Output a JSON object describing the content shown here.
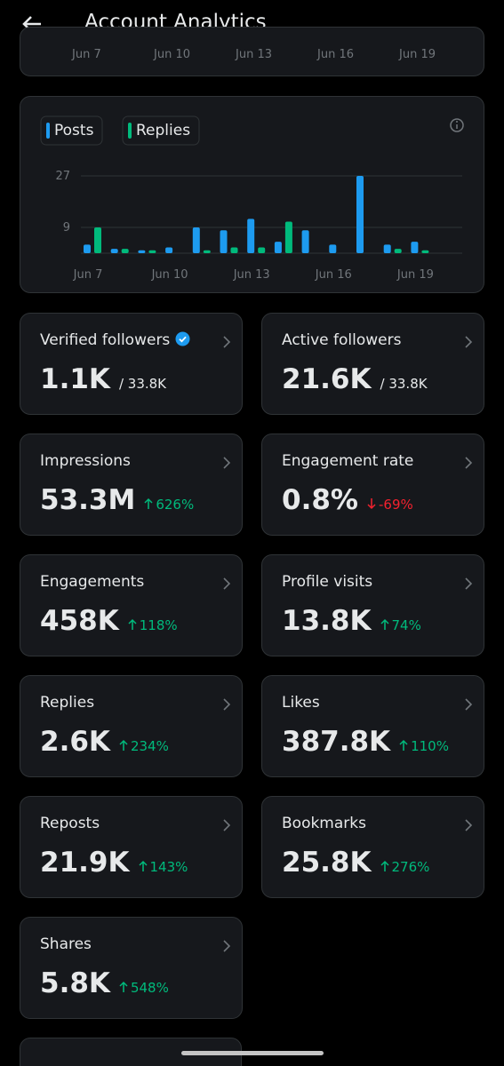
{
  "header": {
    "title": "Account Analytics"
  },
  "previous_chart_labels": [
    "Jun 7",
    "Jun 10",
    "Jun 13",
    "Jun 16",
    "Jun 19"
  ],
  "chart_data": {
    "type": "bar",
    "categories": [
      "Jun 7",
      null,
      null,
      "Jun 10",
      null,
      null,
      "Jun 13",
      null,
      null,
      "Jun 16",
      null,
      null,
      "Jun 19"
    ],
    "series": [
      {
        "name": "Posts",
        "color": "#1d9bf0",
        "values": [
          3,
          1.5,
          1,
          2,
          9,
          8,
          12,
          4,
          8,
          3,
          27,
          3,
          4
        ]
      },
      {
        "name": "Replies",
        "color": "#00ba7c",
        "values": [
          9,
          1.5,
          1,
          0,
          1,
          2,
          2,
          11,
          0,
          0,
          0,
          1.5,
          1
        ]
      }
    ],
    "ylim": [
      0,
      27
    ],
    "yticks": [
      9,
      27
    ],
    "grid": true
  },
  "cards": [
    {
      "label": "Verified followers",
      "verified": true,
      "value": "1.1K",
      "total": "/ 33.8K"
    },
    {
      "label": "Active followers",
      "value": "21.6K",
      "total": "/ 33.8K"
    },
    {
      "label": "Impressions",
      "value": "53.3M",
      "change": "626%",
      "direction": "up"
    },
    {
      "label": "Engagement rate",
      "value": "0.8%",
      "change": "-69%",
      "direction": "down"
    },
    {
      "label": "Engagements",
      "value": "458K",
      "change": "118%",
      "direction": "up"
    },
    {
      "label": "Profile visits",
      "value": "13.8K",
      "change": "74%",
      "direction": "up"
    },
    {
      "label": "Replies",
      "value": "2.6K",
      "change": "234%",
      "direction": "up"
    },
    {
      "label": "Likes",
      "value": "387.8K",
      "change": "110%",
      "direction": "up"
    },
    {
      "label": "Reposts",
      "value": "21.9K",
      "change": "143%",
      "direction": "up"
    },
    {
      "label": "Bookmarks",
      "value": "25.8K",
      "change": "276%",
      "direction": "up"
    },
    {
      "label": "Shares",
      "value": "5.8K",
      "change": "548%",
      "direction": "up"
    }
  ]
}
